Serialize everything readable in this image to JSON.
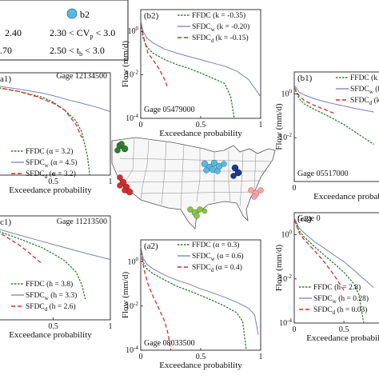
{
  "legend_box": {
    "marker_label": "b2",
    "rows": [
      [
        "2.40",
        "2.30 < CV",
        "p",
        " < 3.0"
      ],
      [
        ".70",
        "2.50 < t",
        "b",
        " < 3.0"
      ]
    ],
    "colors": {
      "marker": "#5bb8e0"
    }
  },
  "styles": {
    "ffdc": "#2e7d32",
    "sfdc_w": "#7b7fb8",
    "sfdc_d": "#d32f2f"
  },
  "chart_data": [
    {
      "id": "a1",
      "type": "line",
      "panel_label": "a1)",
      "gage": "Gage 12134500",
      "xlabel": "Exceedance probability",
      "ylabel": "",
      "x_ticks": [
        "0.5",
        "1"
      ],
      "y_ticks": [],
      "y_scale": "log",
      "legend": [
        [
          "FFDC (",
          "α = 3.2)"
        ],
        [
          "SFDC",
          "w",
          " (α = 4.5)"
        ],
        [
          "SFDC",
          "d",
          " (α = 3.2)"
        ]
      ],
      "series": [
        {
          "name": "FFDC",
          "x": [
            0,
            0.2,
            0.4,
            0.5,
            0.6,
            0.7,
            0.75,
            0.8,
            0.82
          ],
          "y": [
            5,
            3,
            1.5,
            0.8,
            0.3,
            0.08,
            0.02,
            0.001,
            0.0001
          ]
        },
        {
          "name": "SFDC_w",
          "x": [
            0,
            0.2,
            0.4,
            0.5,
            0.6,
            0.75,
            0.9,
            1
          ],
          "y": [
            6,
            4,
            2.5,
            1.8,
            1.2,
            0.7,
            0.4,
            0.25
          ]
        },
        {
          "name": "SFDC_d",
          "x": [
            0,
            0.2,
            0.35,
            0.5,
            0.6,
            0.7,
            0.75
          ],
          "y": [
            5,
            3,
            1.6,
            0.7,
            0.3,
            0.05,
            0.01
          ]
        }
      ]
    },
    {
      "id": "b2",
      "type": "line",
      "panel_label": "(b2)",
      "gage": "Gage 05479000",
      "xlabel": "Exceedance probability",
      "ylabel": "Flow (mm/d)",
      "x_ticks": [
        "0",
        "0.5",
        "1"
      ],
      "y_ticks": [
        "10^0",
        "10^-2",
        "10^-4"
      ],
      "y_scale": "log",
      "ylim": [
        0.0001,
        10
      ],
      "legend": [
        [
          "FFDC (k = -0.35)"
        ],
        [
          "SFDC",
          "w",
          " (k = -0.20)"
        ],
        [
          "SFDC",
          "d",
          " (k = -0.15)"
        ]
      ],
      "series": [
        {
          "name": "FFDC",
          "x": [
            0,
            0.02,
            0.05,
            0.1,
            0.2,
            0.3,
            0.4,
            0.5,
            0.6,
            0.7,
            0.75,
            0.78
          ],
          "y": [
            3,
            0.5,
            0.2,
            0.1,
            0.05,
            0.03,
            0.02,
            0.012,
            0.007,
            0.004,
            0.001,
            0.0001
          ]
        },
        {
          "name": "SFDC_w",
          "x": [
            0,
            0.02,
            0.05,
            0.1,
            0.2,
            0.3,
            0.4,
            0.5,
            0.6,
            0.7,
            0.8,
            0.9,
            1
          ],
          "y": [
            3,
            1,
            0.5,
            0.3,
            0.15,
            0.1,
            0.07,
            0.05,
            0.035,
            0.025,
            0.015,
            0.006,
            0.001
          ]
        },
        {
          "name": "SFDC_d",
          "x": [
            0,
            0.03,
            0.06,
            0.1,
            0.15,
            0.2,
            0.22
          ],
          "y": [
            2,
            0.4,
            0.1,
            0.05,
            0.02,
            0.006,
            0.003
          ]
        }
      ]
    },
    {
      "id": "b1",
      "type": "line",
      "panel_label": "(b1)",
      "gage": "Gage 05517000",
      "xlabel": "Exceedance probab",
      "ylabel": "Flow (mm/d)",
      "x_ticks": [
        "0"
      ],
      "y_ticks": [
        "10^0",
        "10^-2"
      ],
      "y_scale": "log",
      "ylim": [
        0.001,
        10
      ],
      "legend": [
        [
          "FFDC (k"
        ],
        [
          "SFDC",
          "w",
          " (k"
        ],
        [
          "SFDC",
          "d",
          " (k"
        ]
      ],
      "series": [
        {
          "name": "FFDC",
          "x": [
            0,
            0.05,
            0.1,
            0.2,
            0.3,
            0.4,
            0.5,
            0.6,
            0.7,
            0.8
          ],
          "y": [
            2,
            0.6,
            0.35,
            0.2,
            0.12,
            0.07,
            0.04,
            0.02,
            0.01,
            0.005
          ]
        },
        {
          "name": "SFDC_w",
          "x": [
            0,
            0.05,
            0.1,
            0.2,
            0.3,
            0.4,
            0.5,
            0.6,
            0.7,
            0.8
          ],
          "y": [
            2.5,
            1.2,
            0.9,
            0.6,
            0.45,
            0.35,
            0.28,
            0.22,
            0.18,
            0.15
          ]
        },
        {
          "name": "SFDC_d",
          "x": [
            0,
            0.05,
            0.1,
            0.2,
            0.3,
            0.4
          ],
          "y": [
            2,
            0.8,
            0.5,
            0.3,
            0.2,
            0.13
          ]
        }
      ]
    },
    {
      "id": "c1",
      "type": "line",
      "panel_label": "c1)",
      "gage": "Gage 11213500",
      "xlabel": "Exceedance probability",
      "ylabel": "",
      "x_ticks": [
        "0.5",
        "1"
      ],
      "y_ticks": [],
      "y_scale": "log",
      "legend": [
        [
          "FFDC (h = 3.8)"
        ],
        [
          "SFDC",
          "w",
          " (h = 3.3)"
        ],
        [
          "SFDC",
          "d",
          " (h = 2.6)"
        ]
      ],
      "series": [
        {
          "name": "FFDC",
          "x": [
            0,
            0.2,
            0.4,
            0.5,
            0.6,
            0.7,
            0.75,
            0.78
          ],
          "y": [
            2,
            0.8,
            0.3,
            0.15,
            0.07,
            0.02,
            0.005,
            0.001
          ]
        },
        {
          "name": "SFDC_w",
          "x": [
            0,
            0.2,
            0.4,
            0.6,
            0.8,
            1
          ],
          "y": [
            2.5,
            1.2,
            0.6,
            0.3,
            0.15,
            0.08
          ]
        },
        {
          "name": "SFDC_d",
          "x": [
            0,
            0.1,
            0.2,
            0.3,
            0.4
          ],
          "y": [
            2,
            0.9,
            0.4,
            0.15,
            0.05
          ]
        }
      ]
    },
    {
      "id": "a2",
      "type": "line",
      "panel_label": "(a2)",
      "gage": "Gage 08033500",
      "xlabel": "Exceedance probability",
      "ylabel": "Flow (mm/d)",
      "x_ticks": [
        "0",
        "0.5",
        "1"
      ],
      "y_ticks": [
        "10^0",
        "10^-2",
        "10^-4"
      ],
      "y_scale": "log",
      "ylim": [
        0.0001,
        10
      ],
      "legend": [
        [
          "FFDC (α = 0.3)"
        ],
        [
          "SFDC",
          "w",
          " (α = 0.6)"
        ],
        [
          "SFDC",
          "d",
          " (α = 0.4)"
        ]
      ],
      "series": [
        {
          "name": "FFDC",
          "x": [
            0,
            0.02,
            0.05,
            0.1,
            0.2,
            0.3,
            0.4,
            0.5,
            0.6,
            0.7,
            0.8,
            0.85,
            0.88
          ],
          "y": [
            5,
            1,
            0.5,
            0.3,
            0.15,
            0.08,
            0.05,
            0.03,
            0.018,
            0.01,
            0.005,
            0.002,
            0.0001
          ]
        },
        {
          "name": "SFDC_w",
          "x": [
            0,
            0.02,
            0.05,
            0.1,
            0.2,
            0.3,
            0.4,
            0.5,
            0.6,
            0.7,
            0.8,
            0.9,
            0.95,
            0.98
          ],
          "y": [
            5,
            1.5,
            0.8,
            0.5,
            0.25,
            0.15,
            0.1,
            0.06,
            0.04,
            0.025,
            0.015,
            0.008,
            0.004,
            0.0005
          ]
        },
        {
          "name": "SFDC_d",
          "x": [
            0,
            0.03,
            0.06,
            0.1,
            0.15,
            0.2,
            0.23,
            0.25
          ],
          "y": [
            3,
            0.4,
            0.1,
            0.03,
            0.008,
            0.002,
            0.0005,
            0.0001
          ]
        }
      ]
    },
    {
      "id": "c2",
      "type": "line",
      "panel_label": "(c2)",
      "gage": "Gage 0",
      "xlabel": "Exceedance probability",
      "ylabel": "Flow (mm/d)",
      "x_ticks": [
        "0",
        "0.5"
      ],
      "y_ticks": [
        "10^0",
        "10^-2",
        "10^-4"
      ],
      "y_scale": "log",
      "ylim": [
        0.0001,
        10
      ],
      "legend": [
        [
          "FFDC (h = 2.8)"
        ],
        [
          "SFDC",
          "w",
          " (h = 0.28)"
        ],
        [
          "SFDC",
          "d",
          " (h = 0.03)"
        ]
      ],
      "series": [
        {
          "name": "FFDC",
          "x": [
            0,
            0.05,
            0.1,
            0.2,
            0.3,
            0.4,
            0.5,
            0.6,
            0.65,
            0.7
          ],
          "y": [
            5,
            1.5,
            0.8,
            0.3,
            0.12,
            0.05,
            0.02,
            0.006,
            0.002,
            0.0001
          ]
        },
        {
          "name": "SFDC_w",
          "x": [
            0,
            0.05,
            0.1,
            0.2,
            0.3,
            0.4,
            0.5,
            0.6,
            0.7,
            0.8
          ],
          "y": [
            6,
            2,
            1.2,
            0.5,
            0.25,
            0.12,
            0.06,
            0.025,
            0.01,
            0.004
          ]
        },
        {
          "name": "SFDC_d",
          "x": [
            0,
            0.05,
            0.1,
            0.2,
            0.3,
            0.4,
            0.5
          ],
          "y": [
            5,
            1.2,
            0.6,
            0.2,
            0.06,
            0.015,
            0.003
          ]
        }
      ]
    }
  ]
}
